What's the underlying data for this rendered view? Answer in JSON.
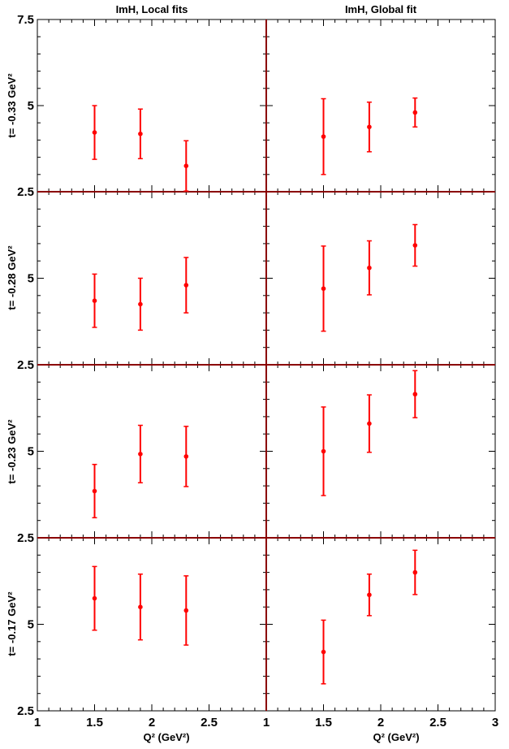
{
  "column_titles": [
    "ImH, Local fits",
    "ImH, Global fit"
  ],
  "x_axis_label": "Q² (GeV²)",
  "row_labels": [
    "t= -0.33 GeV²",
    "t= -0.28 GeV²",
    "t= -0.23 GeV²",
    "t= -0.17 GeV²"
  ],
  "chart_data": {
    "type": "scatter",
    "layout": "grid 4 rows x 2 columns",
    "xlim": [
      1,
      3
    ],
    "ylim": [
      2.5,
      7.5
    ],
    "x_ticks": [
      "1",
      "1.5",
      "2",
      "2.5",
      "3"
    ],
    "y_ticks": [
      "2.5",
      "5",
      "7.5"
    ],
    "marker_color": "#ff0000",
    "frame_color": "#000000",
    "divider_color": "#8b0000",
    "panels": [
      {
        "row": 0,
        "col": 0,
        "points": [
          {
            "x": 1.5,
            "y": 4.22,
            "err": 0.78
          },
          {
            "x": 1.9,
            "y": 4.18,
            "err": 0.72
          },
          {
            "x": 2.3,
            "y": 3.25,
            "err": 0.73
          }
        ]
      },
      {
        "row": 0,
        "col": 1,
        "points": [
          {
            "x": 1.5,
            "y": 4.1,
            "err": 1.1
          },
          {
            "x": 1.9,
            "y": 4.38,
            "err": 0.72
          },
          {
            "x": 2.3,
            "y": 4.8,
            "err": 0.42
          }
        ]
      },
      {
        "row": 1,
        "col": 0,
        "points": [
          {
            "x": 1.5,
            "y": 4.35,
            "err": 0.77
          },
          {
            "x": 1.9,
            "y": 4.25,
            "err": 0.75
          },
          {
            "x": 2.3,
            "y": 4.8,
            "err": 0.8
          }
        ]
      },
      {
        "row": 1,
        "col": 1,
        "points": [
          {
            "x": 1.5,
            "y": 4.7,
            "err": 1.23
          },
          {
            "x": 1.9,
            "y": 5.3,
            "err": 0.78
          },
          {
            "x": 2.3,
            "y": 5.95,
            "err": 0.6
          }
        ]
      },
      {
        "row": 2,
        "col": 0,
        "points": [
          {
            "x": 1.5,
            "y": 3.85,
            "err": 0.77
          },
          {
            "x": 1.9,
            "y": 4.92,
            "err": 0.83
          },
          {
            "x": 2.3,
            "y": 4.85,
            "err": 0.87
          }
        ]
      },
      {
        "row": 2,
        "col": 1,
        "points": [
          {
            "x": 1.5,
            "y": 5.0,
            "err": 1.28
          },
          {
            "x": 1.9,
            "y": 5.8,
            "err": 0.83
          },
          {
            "x": 2.3,
            "y": 6.65,
            "err": 0.68
          }
        ]
      },
      {
        "row": 3,
        "col": 0,
        "points": [
          {
            "x": 1.5,
            "y": 5.75,
            "err": 0.92
          },
          {
            "x": 1.9,
            "y": 5.5,
            "err": 0.95
          },
          {
            "x": 2.3,
            "y": 5.4,
            "err": 1.0
          }
        ]
      },
      {
        "row": 3,
        "col": 1,
        "points": [
          {
            "x": 1.5,
            "y": 4.2,
            "err": 0.92
          },
          {
            "x": 1.9,
            "y": 5.85,
            "err": 0.6
          },
          {
            "x": 2.3,
            "y": 6.5,
            "err": 0.64
          }
        ]
      }
    ]
  }
}
